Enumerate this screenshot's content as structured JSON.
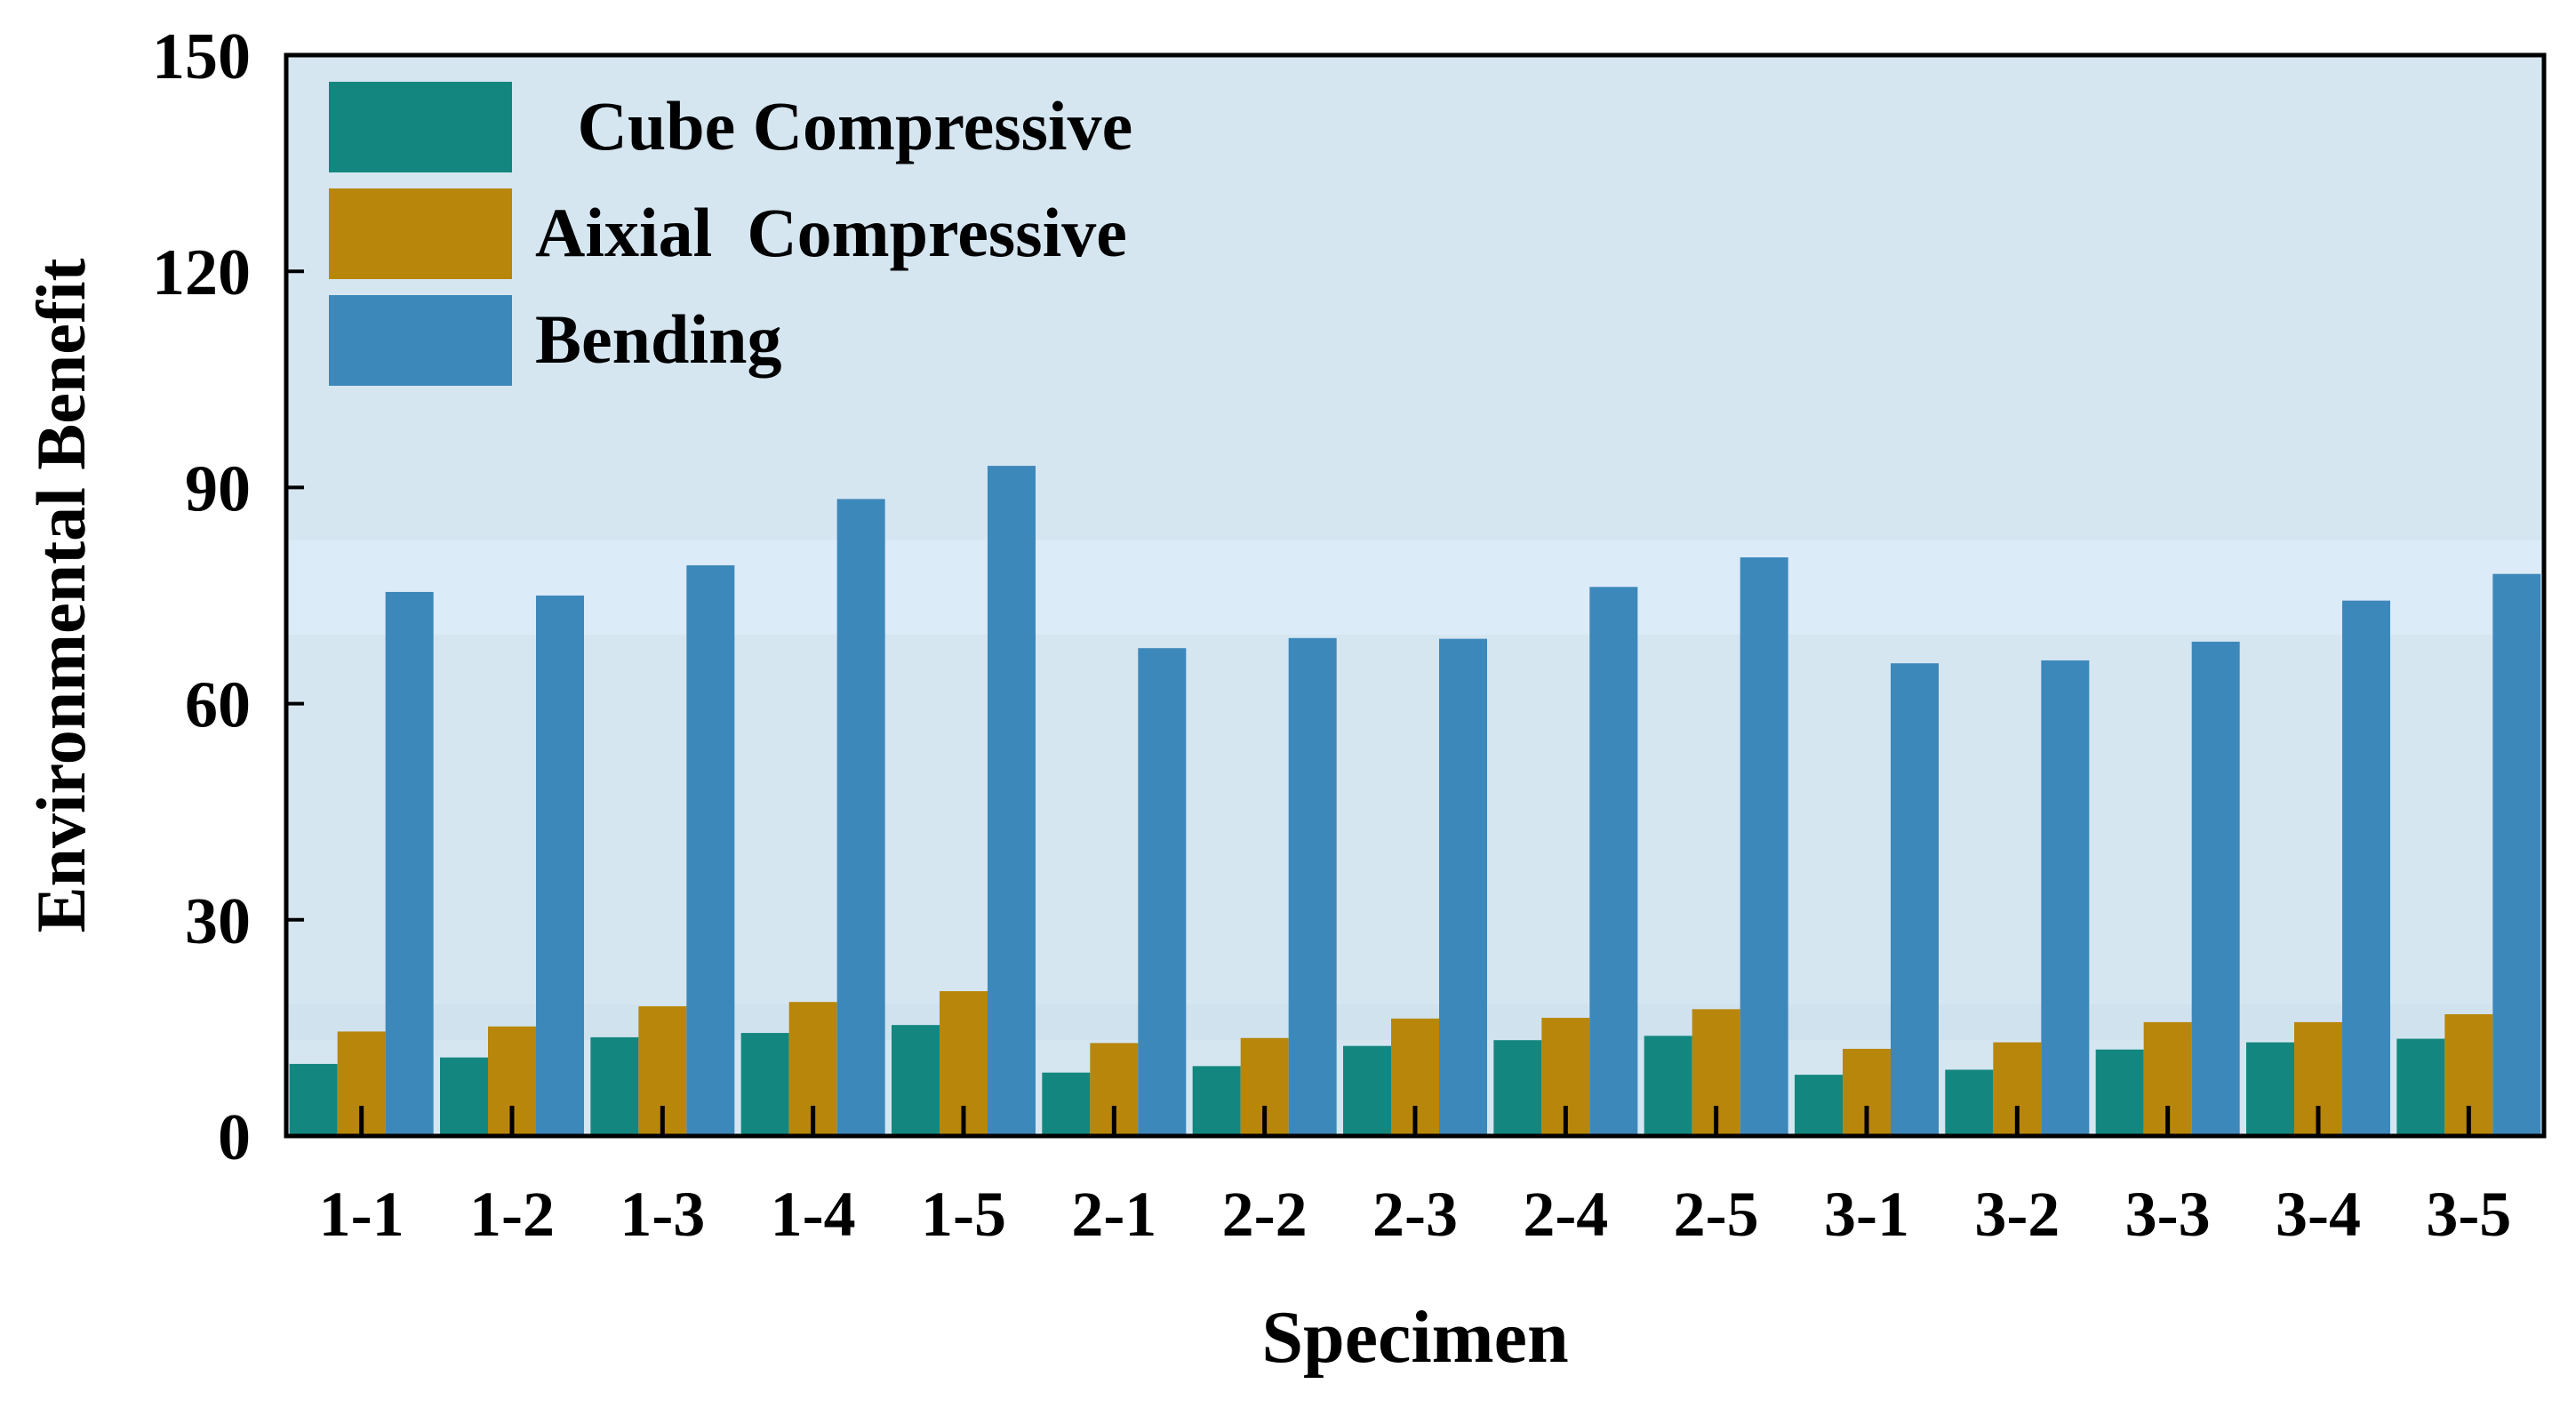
{
  "chart_data": {
    "type": "bar",
    "title": "",
    "xlabel": "Specimen",
    "ylabel": "Environmental Benefit",
    "ylim": [
      0,
      150
    ],
    "yticks": [
      0,
      30,
      60,
      90,
      120,
      150
    ],
    "categories": [
      "1-1",
      "1-2",
      "1-3",
      "1-4",
      "1-5",
      "2-1",
      "2-2",
      "2-3",
      "2-4",
      "2-5",
      "3-1",
      "3-2",
      "3-3",
      "3-4",
      "3-5"
    ],
    "series": [
      {
        "name": " Cube Compressive",
        "color": "#13877f",
        "values": [
          10.0,
          10.9,
          13.7,
          14.3,
          15.4,
          8.8,
          9.7,
          12.5,
          13.3,
          13.9,
          8.5,
          9.2,
          12.0,
          13.0,
          13.5
        ]
      },
      {
        "name": "Aixial  Compressive",
        "color": "#b8860b",
        "values": [
          14.5,
          15.2,
          18.0,
          18.6,
          20.1,
          12.9,
          13.6,
          16.3,
          16.4,
          17.6,
          12.1,
          13.0,
          15.8,
          15.8,
          16.9
        ]
      },
      {
        "name": "Bending",
        "color": "#3d88bb",
        "values": [
          75.5,
          75.0,
          79.2,
          88.4,
          93.0,
          67.7,
          69.1,
          69.0,
          76.2,
          80.3,
          65.6,
          66.0,
          68.6,
          74.3,
          78.0
        ]
      }
    ],
    "legend_position": "top-left",
    "background_color": "#d5e6f1",
    "highlight_band_color": "#dcebf8"
  }
}
